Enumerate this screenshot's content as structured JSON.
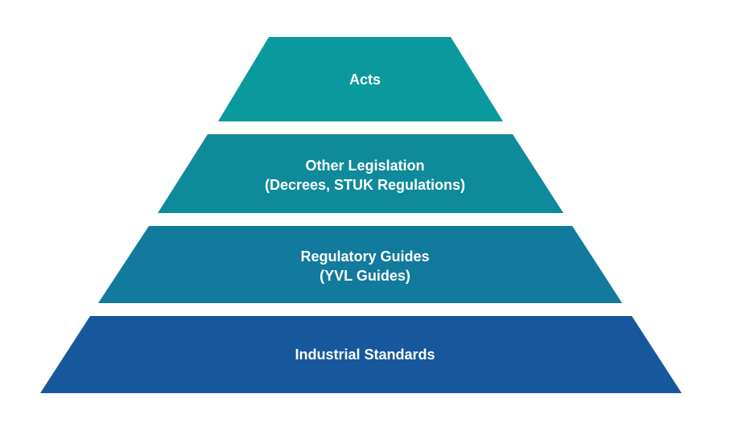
{
  "tiers": [
    {
      "lines": [
        "Acts"
      ],
      "color": "#0A9A9D"
    },
    {
      "lines": [
        "Other Legislation",
        "(Decrees, STUK Regulations)"
      ],
      "color": "#0F8A9A"
    },
    {
      "lines": [
        "Regulatory Guides",
        "(YVL Guides)"
      ],
      "color": "#127A9C"
    },
    {
      "lines": [
        "Industrial Standards"
      ],
      "color": "#17589C"
    }
  ]
}
